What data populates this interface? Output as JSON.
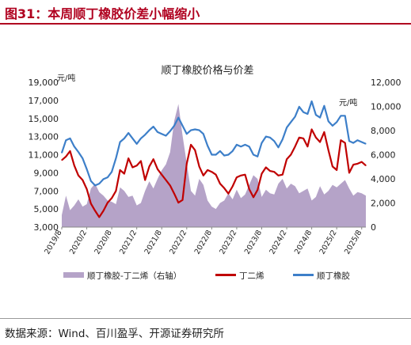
{
  "figure": {
    "title": "图31：本周顺丁橡胶价差小幅缩小",
    "source": "数据来源：Wind、百川盈孚、开源证券研究所"
  },
  "chart_data": {
    "type": "line",
    "title": "顺丁橡胶价格与价差",
    "left_unit": "元/吨",
    "right_unit": "元/吨",
    "y_left": {
      "lim": [
        3000,
        19000
      ],
      "ticks": [
        "3,000",
        "5,000",
        "7,000",
        "9,000",
        "11,000",
        "13,000",
        "15,000",
        "17,000",
        "19,000"
      ]
    },
    "y_right": {
      "lim": [
        0,
        12000
      ],
      "ticks": [
        "0",
        "2,000",
        "4,000",
        "6,000",
        "8,000",
        "10,000",
        "12,000"
      ]
    },
    "x_ticks": [
      "2019/8",
      "2020/2",
      "2020/8",
      "2021/2",
      "2021/8",
      "2022/2",
      "2022/8",
      "2023/2",
      "2023/8",
      "2024/2",
      "2024/8",
      "2025/2",
      "2025/8"
    ],
    "x_range": [
      "2019-08",
      "2025-09"
    ],
    "legend_position": "bottom",
    "colors": {
      "spread": "#b5a3c8",
      "butadiene": "#c00000",
      "brubber": "#3d7fc9"
    },
    "series": [
      {
        "name": "顺丁橡胶-丁二烯（右轴）",
        "axis": "right",
        "style": "area",
        "x": [
          "2019-08",
          "2019-09",
          "2019-10",
          "2019-11",
          "2019-12",
          "2020-01",
          "2020-02",
          "2020-03",
          "2020-04",
          "2020-05",
          "2020-06",
          "2020-07",
          "2020-08",
          "2020-09",
          "2020-10",
          "2020-11",
          "2020-12",
          "2021-01",
          "2021-02",
          "2021-03",
          "2021-04",
          "2021-05",
          "2021-06",
          "2021-07",
          "2021-08",
          "2021-09",
          "2021-10",
          "2021-11",
          "2021-12",
          "2022-01",
          "2022-02",
          "2022-03",
          "2022-04",
          "2022-05",
          "2022-06",
          "2022-07",
          "2022-08",
          "2022-09",
          "2022-10",
          "2022-11",
          "2022-12",
          "2023-01",
          "2023-02",
          "2023-03",
          "2023-04",
          "2023-05",
          "2023-06",
          "2023-07",
          "2023-08",
          "2023-09",
          "2023-10",
          "2023-11",
          "2023-12",
          "2024-01",
          "2024-02",
          "2024-03",
          "2024-04",
          "2024-05",
          "2024-06",
          "2024-07",
          "2024-08",
          "2024-09",
          "2024-10",
          "2024-11",
          "2024-12",
          "2025-01",
          "2025-02",
          "2025-03",
          "2025-04",
          "2025-05",
          "2025-06",
          "2025-07",
          "2025-08",
          "2025-09"
        ],
        "values": [
          1000,
          2600,
          1400,
          1800,
          2300,
          1700,
          1900,
          3200,
          3600,
          2900,
          2600,
          2200,
          2100,
          1900,
          3300,
          3000,
          2500,
          2600,
          1800,
          2000,
          3000,
          3800,
          3200,
          4000,
          4700,
          5200,
          6200,
          8800,
          10200,
          7600,
          5300,
          3000,
          2600,
          4000,
          3500,
          2200,
          1700,
          1500,
          2000,
          2200,
          2800,
          2300,
          3100,
          2400,
          2700,
          3500,
          4300,
          4000,
          2500,
          3100,
          2800,
          2700,
          3600,
          4000,
          3200,
          3600,
          3400,
          2800,
          3000,
          3200,
          2200,
          2500,
          3400,
          2700,
          3000,
          3500,
          3300,
          3600,
          3900,
          3200,
          2600,
          2900,
          2800,
          2600
        ]
      },
      {
        "name": "丁二烯",
        "axis": "left",
        "style": "line",
        "x": [
          "2019-08",
          "2019-09",
          "2019-10",
          "2019-11",
          "2019-12",
          "2020-01",
          "2020-02",
          "2020-03",
          "2020-04",
          "2020-05",
          "2020-06",
          "2020-07",
          "2020-08",
          "2020-09",
          "2020-10",
          "2020-11",
          "2020-12",
          "2021-01",
          "2021-02",
          "2021-03",
          "2021-04",
          "2021-05",
          "2021-06",
          "2021-07",
          "2021-08",
          "2021-09",
          "2021-10",
          "2021-11",
          "2021-12",
          "2022-01",
          "2022-02",
          "2022-03",
          "2022-04",
          "2022-05",
          "2022-06",
          "2022-07",
          "2022-08",
          "2022-09",
          "2022-10",
          "2022-11",
          "2022-12",
          "2023-01",
          "2023-02",
          "2023-03",
          "2023-04",
          "2023-05",
          "2023-06",
          "2023-07",
          "2023-08",
          "2023-09",
          "2023-10",
          "2023-11",
          "2023-12",
          "2024-01",
          "2024-02",
          "2024-03",
          "2024-04",
          "2024-05",
          "2024-06",
          "2024-07",
          "2024-08",
          "2024-09",
          "2024-10",
          "2024-11",
          "2024-12",
          "2025-01",
          "2025-02",
          "2025-03",
          "2025-04",
          "2025-05",
          "2025-06",
          "2025-07",
          "2025-08",
          "2025-09"
        ],
        "values": [
          10400,
          10800,
          11400,
          9800,
          8700,
          8200,
          7200,
          5600,
          4800,
          4100,
          4800,
          5700,
          6200,
          7000,
          9300,
          8900,
          10600,
          9600,
          9800,
          10300,
          8200,
          9700,
          10500,
          9400,
          8800,
          8200,
          7600,
          6700,
          5700,
          6000,
          10000,
          12100,
          11500,
          9700,
          8700,
          9300,
          9100,
          8800,
          7800,
          7300,
          6700,
          7500,
          8500,
          8700,
          8800,
          7200,
          6300,
          7100,
          8900,
          9600,
          9200,
          9100,
          8700,
          8800,
          10500,
          11000,
          11900,
          12900,
          12800,
          11900,
          13800,
          12900,
          12400,
          13500,
          11500,
          9700,
          9300,
          12600,
          12300,
          9000,
          9900,
          10000,
          10200,
          9800
        ]
      },
      {
        "name": "顺丁橡胶",
        "axis": "left",
        "style": "line",
        "x": [
          "2019-08",
          "2019-09",
          "2019-10",
          "2019-11",
          "2019-12",
          "2020-01",
          "2020-02",
          "2020-03",
          "2020-04",
          "2020-05",
          "2020-06",
          "2020-07",
          "2020-08",
          "2020-09",
          "2020-10",
          "2020-11",
          "2020-12",
          "2021-01",
          "2021-02",
          "2021-03",
          "2021-04",
          "2021-05",
          "2021-06",
          "2021-07",
          "2021-08",
          "2021-09",
          "2021-10",
          "2021-11",
          "2021-12",
          "2022-01",
          "2022-02",
          "2022-03",
          "2022-04",
          "2022-05",
          "2022-06",
          "2022-07",
          "2022-08",
          "2022-09",
          "2022-10",
          "2022-11",
          "2022-12",
          "2023-01",
          "2023-02",
          "2023-03",
          "2023-04",
          "2023-05",
          "2023-06",
          "2023-07",
          "2023-08",
          "2023-09",
          "2023-10",
          "2023-11",
          "2023-12",
          "2024-01",
          "2024-02",
          "2024-03",
          "2024-04",
          "2024-05",
          "2024-06",
          "2024-07",
          "2024-08",
          "2024-09",
          "2024-10",
          "2024-11",
          "2024-12",
          "2025-01",
          "2025-02",
          "2025-03",
          "2025-04",
          "2025-05",
          "2025-06",
          "2025-07",
          "2025-08",
          "2025-09"
        ],
        "values": [
          11200,
          12600,
          12800,
          11900,
          11300,
          10600,
          9400,
          8100,
          7600,
          7800,
          8300,
          8500,
          9100,
          10600,
          12400,
          12800,
          13400,
          12800,
          12200,
          12800,
          13200,
          13700,
          14100,
          13500,
          13300,
          13100,
          13600,
          14200,
          15100,
          14200,
          13300,
          13700,
          13800,
          13700,
          13300,
          12000,
          11000,
          11000,
          11400,
          10900,
          11000,
          11400,
          12100,
          11900,
          12100,
          11900,
          11000,
          10800,
          12300,
          13000,
          12900,
          12500,
          11800,
          12700,
          14000,
          14600,
          15200,
          16300,
          15700,
          15500,
          16900,
          15400,
          15100,
          16400,
          14700,
          14200,
          14600,
          15300,
          15300,
          12500,
          12300,
          12600,
          12400,
          12200
        ]
      }
    ]
  }
}
